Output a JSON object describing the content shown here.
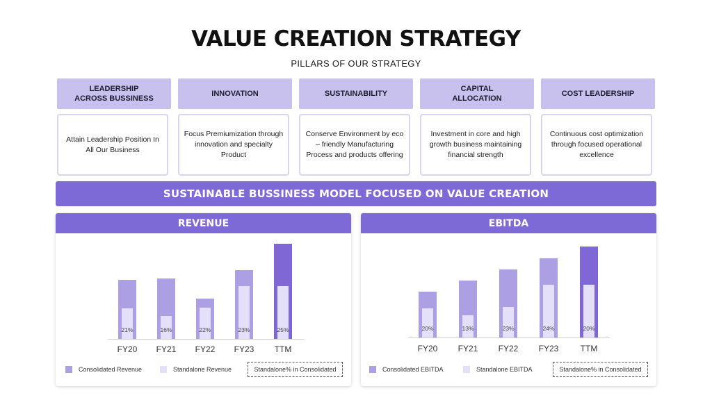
{
  "title": "VALUE CREATION STRATEGY",
  "subtitle": "PILLARS OF OUR STRATEGY",
  "pillars": [
    {
      "heading": "LEADERSHIP\nACROSS BUSSINESS",
      "text": "Attain Leadership Position In All Our Business"
    },
    {
      "heading": "INNOVATION",
      "text": "Focus Premiumization through innovation and specialty Product"
    },
    {
      "heading": "SUSTAINABILITY",
      "text": "Conserve Environment by eco – friendly Manufacturing Process and products offering"
    },
    {
      "heading": "CAPITAL\nALLOCATION",
      "text": "Investment in core and high growth business maintaining financial strength"
    },
    {
      "heading": "COST LEADERSHIP",
      "text": "Continuous cost optimization through focused operational excellence"
    }
  ],
  "banner": "SUSTAINABLE BUSSINESS MODEL FOCUSED ON VALUE CREATION",
  "colors": {
    "accent": "#7d6ad6",
    "pillar_head": "#c8c1ee",
    "consolidated": "#ac9fe4",
    "standalone": "#e5e0fa",
    "ttm_consolidated": "#7f67d6"
  },
  "chart_data": [
    {
      "type": "bar",
      "title": "REVENUE",
      "categories": [
        "FY20",
        "FY21",
        "FY22",
        "FY23",
        "TTM"
      ],
      "series": [
        {
          "name": "Consolidated Revenue",
          "values": [
            85,
            87,
            58,
            99,
            137
          ]
        },
        {
          "name": "Standalone Revenue",
          "values": [
            44,
            33,
            45,
            76,
            76
          ]
        }
      ],
      "data_labels": [
        "21%",
        "16%",
        "22%",
        "23%",
        "25%"
      ],
      "legend_box": "Standalone% in Consolidated",
      "ylim": [
        0,
        140
      ],
      "grid": false,
      "legend": "bottom"
    },
    {
      "type": "bar",
      "title": "EBITDA",
      "categories": [
        "FY20",
        "FY21",
        "FY22",
        "FY23",
        "TTM"
      ],
      "series": [
        {
          "name": "Consolidated EBITDA",
          "values": [
            66,
            82,
            98,
            114,
            131
          ]
        },
        {
          "name": "Standalone EBITDA",
          "values": [
            42,
            32,
            44,
            76,
            76
          ]
        }
      ],
      "data_labels": [
        "20%",
        "13%",
        "23%",
        "24%",
        "20%"
      ],
      "legend_box": "Standalone% in Consolidated",
      "ylim": [
        0,
        140
      ],
      "grid": false,
      "legend": "bottom"
    }
  ]
}
